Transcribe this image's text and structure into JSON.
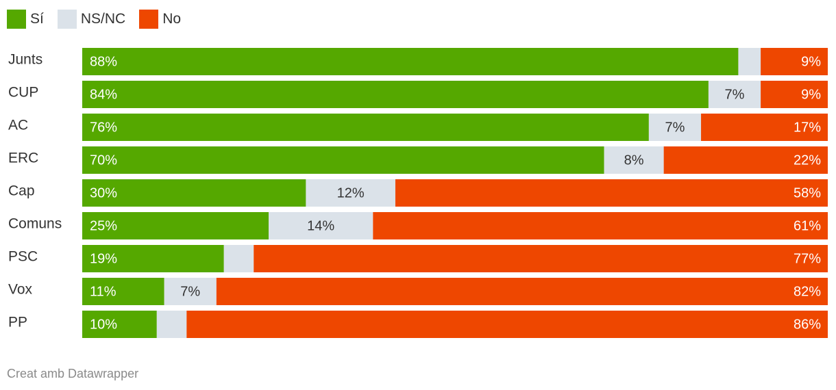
{
  "chart_data": {
    "type": "bar",
    "orientation": "horizontal",
    "stacked": true,
    "normalized_percent": true,
    "categories": [
      "Junts",
      "CUP",
      "AC",
      "ERC",
      "Cap",
      "Comuns",
      "PSC",
      "Vox",
      "PP"
    ],
    "series": [
      {
        "name": "Sí",
        "color": "#55a800",
        "values": [
          88,
          84,
          76,
          70,
          30,
          25,
          19,
          11,
          10
        ],
        "labels": [
          "88%",
          "84%",
          "76%",
          "70%",
          "30%",
          "25%",
          "19%",
          "11%",
          "10%"
        ]
      },
      {
        "name": "NS/NC",
        "color": "#dbe2e9",
        "values": [
          3,
          7,
          7,
          8,
          12,
          14,
          4,
          7,
          4
        ],
        "labels": [
          "",
          "7%",
          "7%",
          "8%",
          "12%",
          "14%",
          "",
          "7%",
          ""
        ]
      },
      {
        "name": "No",
        "color": "#ee4700",
        "values": [
          9,
          9,
          17,
          22,
          58,
          61,
          77,
          82,
          86
        ],
        "labels": [
          "9%",
          "9%",
          "17%",
          "22%",
          "58%",
          "61%",
          "77%",
          "82%",
          "86%"
        ]
      }
    ],
    "legend_position": "top-left",
    "grid": false
  },
  "footer": {
    "credit": "Creat amb Datawrapper"
  }
}
